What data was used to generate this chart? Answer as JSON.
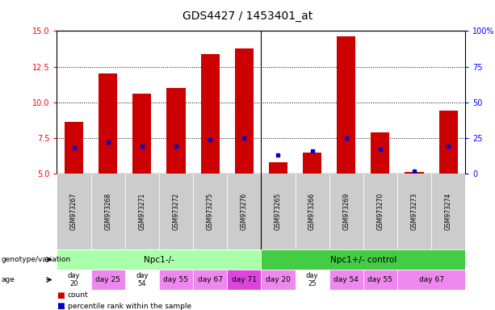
{
  "title": "GDS4427 / 1453401_at",
  "samples": [
    "GSM973267",
    "GSM973268",
    "GSM973271",
    "GSM973272",
    "GSM973275",
    "GSM973276",
    "GSM973265",
    "GSM973266",
    "GSM973269",
    "GSM973270",
    "GSM973273",
    "GSM973274"
  ],
  "count_values": [
    8.6,
    12.0,
    10.6,
    11.0,
    13.4,
    13.8,
    5.8,
    6.5,
    14.6,
    7.9,
    5.1,
    9.4
  ],
  "percentile_values": [
    6.8,
    7.2,
    6.9,
    6.9,
    7.4,
    7.5,
    6.3,
    6.6,
    7.5,
    6.7,
    5.2,
    6.9
  ],
  "ylim_left": [
    5,
    15
  ],
  "ylim_right": [
    0,
    100
  ],
  "yticks_left": [
    5,
    7.5,
    10,
    12.5,
    15
  ],
  "yticks_right": [
    0,
    25,
    50,
    75,
    100
  ],
  "bar_color": "#cc0000",
  "dot_color": "#0000cc",
  "bar_bottom": 5.0,
  "groups": [
    {
      "label": "Npc1-/-",
      "start": 0,
      "end": 6,
      "color": "#aaffaa"
    },
    {
      "label": "Npc1+/- control",
      "start": 6,
      "end": 12,
      "color": "#44cc44"
    }
  ],
  "age_spans": [
    {
      "label": "day\n20",
      "start": 0,
      "end": 1,
      "color": "#ffffff"
    },
    {
      "label": "day 25",
      "start": 1,
      "end": 2,
      "color": "#ee88ee"
    },
    {
      "label": "day\n54",
      "start": 2,
      "end": 3,
      "color": "#ffffff"
    },
    {
      "label": "day 55",
      "start": 3,
      "end": 4,
      "color": "#ee88ee"
    },
    {
      "label": "day 67",
      "start": 4,
      "end": 5,
      "color": "#ee88ee"
    },
    {
      "label": "day 71",
      "start": 5,
      "end": 6,
      "color": "#dd44dd"
    },
    {
      "label": "day 20",
      "start": 6,
      "end": 7,
      "color": "#ee88ee"
    },
    {
      "label": "day\n25",
      "start": 7,
      "end": 8,
      "color": "#ffffff"
    },
    {
      "label": "day 54",
      "start": 8,
      "end": 9,
      "color": "#ee88ee"
    },
    {
      "label": "day 55",
      "start": 9,
      "end": 10,
      "color": "#ee88ee"
    },
    {
      "label": "day 67",
      "start": 10,
      "end": 12,
      "color": "#ee88ee"
    }
  ],
  "sample_bg_color": "#cccccc",
  "title_fontsize": 10,
  "tick_fontsize": 7,
  "label_fontsize": 7
}
